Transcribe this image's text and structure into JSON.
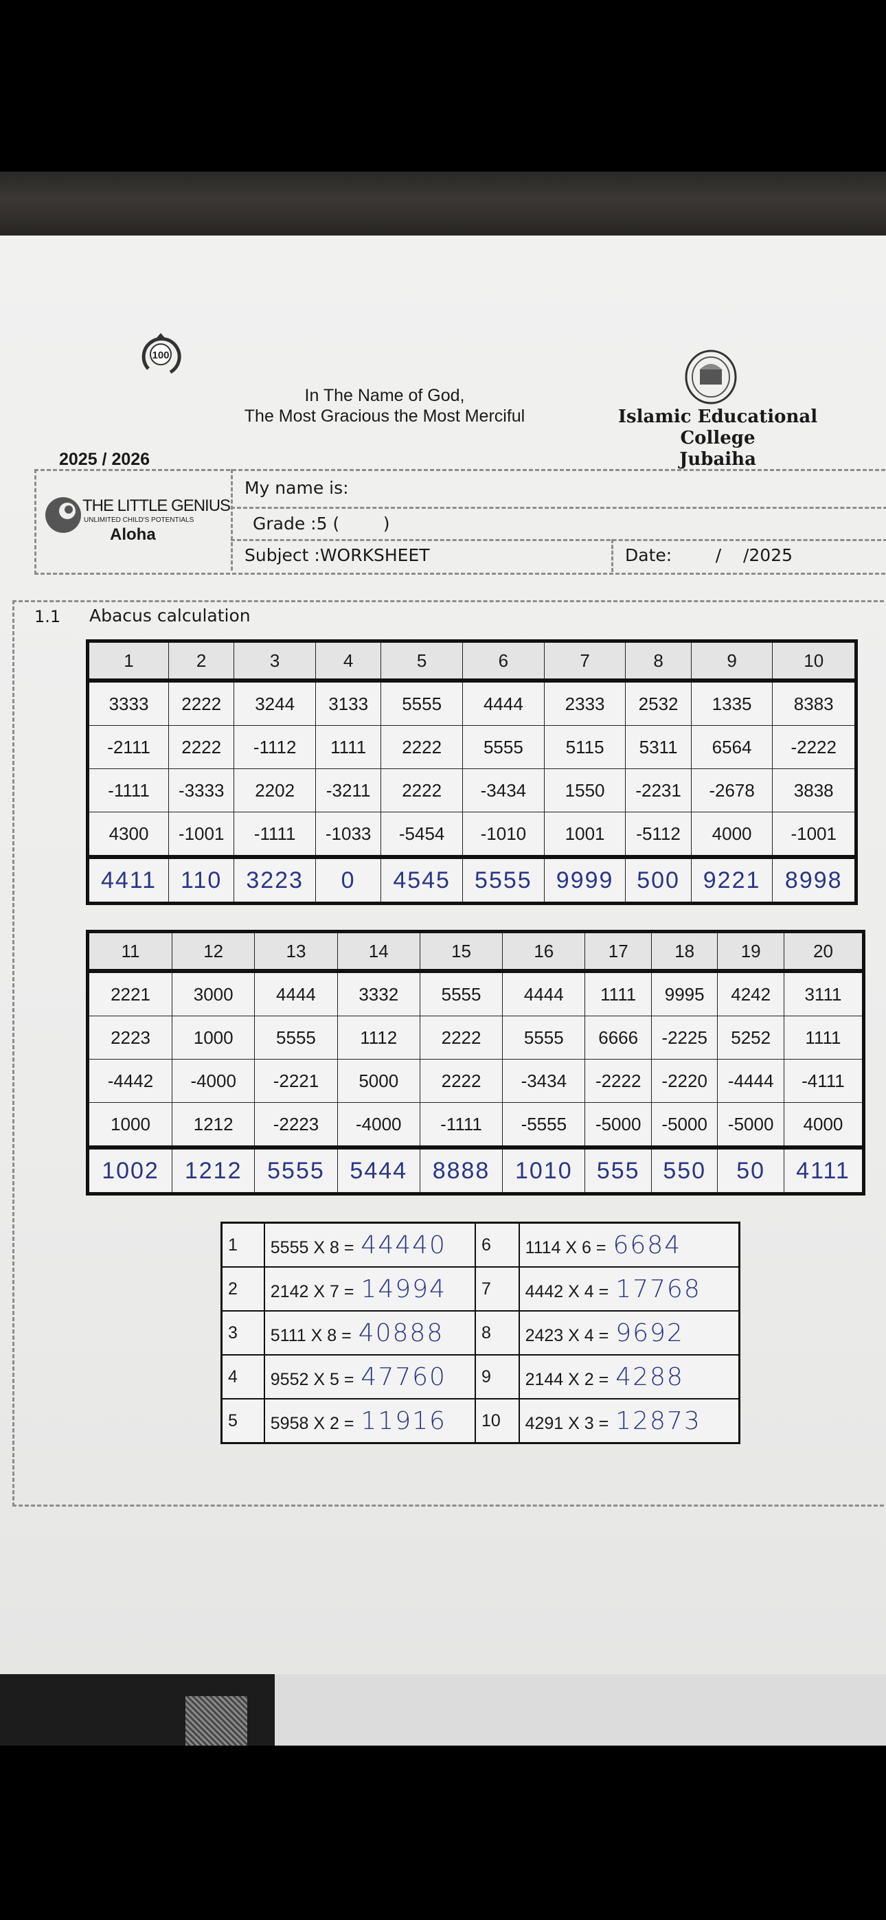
{
  "header": {
    "centenary_logo": "100",
    "greeting_line1": "In The Name of God,",
    "greeting_line2": "The Most Gracious the Most Merciful",
    "school_line1": "Islamic Educational",
    "school_line2": "College",
    "school_line3": "Jubaiha",
    "year": "2025 / 2026"
  },
  "info_box": {
    "brand_name": "THE LITTLE GENIUS",
    "brand_tagline": "UNLIMITED CHILD'S POTENTIALS",
    "brand_sub": "Aloha",
    "name_label": "My name is:",
    "grade_label": "Grade :5 (        )",
    "subject_label": "Subject :WORKSHEET",
    "date_label": "Date:        /    /2025"
  },
  "section": {
    "number": "1.1",
    "title": "Abacus calculation"
  },
  "table1": {
    "headers": [
      "1",
      "2",
      "3",
      "4",
      "5",
      "6",
      "7",
      "8",
      "9",
      "10"
    ],
    "rows": [
      [
        "3333",
        "2222",
        "3244",
        "3133",
        "5555",
        "4444",
        "2333",
        "2532",
        "1335",
        "8383"
      ],
      [
        "-2111",
        "2222",
        "-1112",
        "1111",
        "2222",
        "5555",
        "5115",
        "5311",
        "6564",
        "-2222"
      ],
      [
        "-1111",
        "-3333",
        "2202",
        "-3211",
        "2222",
        "-3434",
        "1550",
        "-2231",
        "-2678",
        "3838"
      ],
      [
        "4300",
        "-1001",
        "-1111",
        "-1033",
        "-5454",
        "-1010",
        "1001",
        "-5112",
        "4000",
        "-1001"
      ]
    ],
    "answers": [
      "4411",
      "110",
      "3223",
      "0",
      "4545",
      "5555",
      "9999",
      "500",
      "9221",
      "8998"
    ]
  },
  "table2": {
    "headers": [
      "11",
      "12",
      "13",
      "14",
      "15",
      "16",
      "17",
      "18",
      "19",
      "20"
    ],
    "rows": [
      [
        "2221",
        "3000",
        "4444",
        "3332",
        "5555",
        "4444",
        "1111",
        "9995",
        "4242",
        "3111"
      ],
      [
        "2223",
        "1000",
        "5555",
        "1112",
        "2222",
        "5555",
        "6666",
        "-2225",
        "5252",
        "1111"
      ],
      [
        "-4442",
        "-4000",
        "-2221",
        "5000",
        "2222",
        "-3434",
        "-2222",
        "-2220",
        "-4444",
        "-4111"
      ],
      [
        "1000",
        "1212",
        "-2223",
        "-4000",
        "-1111",
        "-5555",
        "-5000",
        "-5000",
        "-5000",
        "4000"
      ]
    ],
    "answers": [
      "1002",
      "1212",
      "5555",
      "5444",
      "8888",
      "1010",
      "555",
      "550",
      "50",
      "4111"
    ]
  },
  "multiplication": [
    {
      "n": "1",
      "expr": "5555 X 8 =",
      "ans": "44440"
    },
    {
      "n": "2",
      "expr": "2142 X 7 =",
      "ans": "14994"
    },
    {
      "n": "3",
      "expr": "5111 X 8 =",
      "ans": "40888"
    },
    {
      "n": "4",
      "expr": "9552 X 5 =",
      "ans": "47760"
    },
    {
      "n": "5",
      "expr": "5958 X 2 =",
      "ans": "11916"
    },
    {
      "n": "6",
      "expr": "1114 X 6 =",
      "ans": "6684"
    },
    {
      "n": "7",
      "expr": "4442 X 4 =",
      "ans": "17768"
    },
    {
      "n": "8",
      "expr": "2423 X 4 =",
      "ans": "9692"
    },
    {
      "n": "9",
      "expr": "2144 X 2 =",
      "ans": "4288"
    },
    {
      "n": "10",
      "expr": "4291 X 3 =",
      "ans": "12873"
    }
  ],
  "colors": {
    "ink": "#2b3584",
    "paper": "#ececeb",
    "print": "#1a1a1a"
  }
}
